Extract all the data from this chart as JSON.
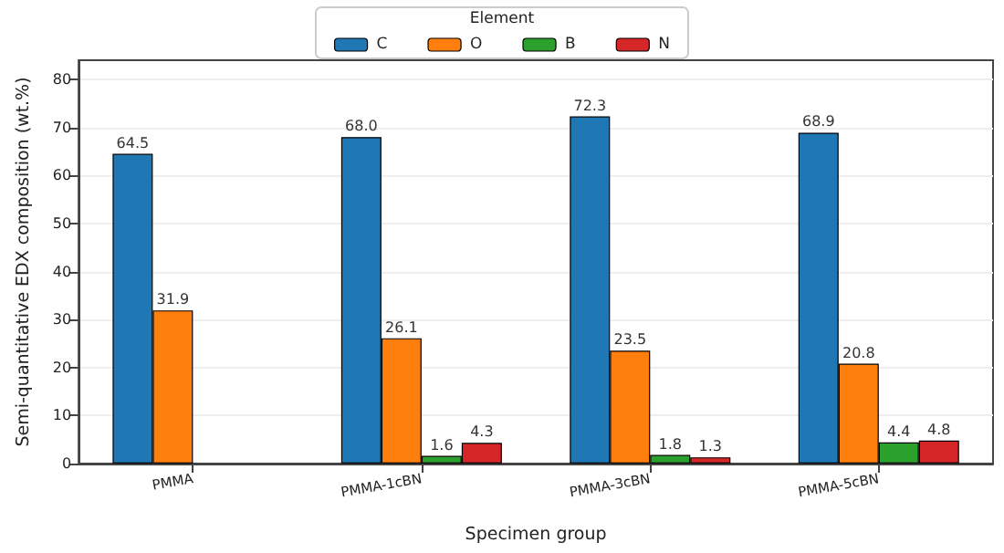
{
  "chart_data": {
    "type": "bar",
    "xlabel": "Specimen group",
    "ylabel": "Semi-quantitative EDX composition (wt.%)",
    "legend_title": "Element",
    "categories": [
      "PMMA",
      "PMMA-1cBN",
      "PMMA-3cBN",
      "PMMA-5cBN"
    ],
    "series": [
      {
        "name": "C",
        "color": "#1f77b4",
        "values": [
          64.5,
          68.0,
          72.3,
          68.9
        ],
        "value_labels": [
          "64.5",
          "68.0",
          "72.3",
          "68.9"
        ]
      },
      {
        "name": "O",
        "color": "#ff7f0e",
        "values": [
          31.9,
          26.1,
          23.5,
          20.8
        ],
        "value_labels": [
          "31.9",
          "26.1",
          "23.5",
          "20.8"
        ]
      },
      {
        "name": "B",
        "color": "#2ca02c",
        "values": [
          null,
          1.6,
          1.8,
          4.4
        ],
        "value_labels": [
          null,
          "1.6",
          "1.8",
          "4.4"
        ]
      },
      {
        "name": "N",
        "color": "#d62728",
        "values": [
          null,
          4.3,
          1.3,
          4.8
        ],
        "value_labels": [
          null,
          "4.3",
          "1.3",
          "4.8"
        ]
      }
    ],
    "ylim": [
      0,
      84
    ],
    "yticks": [
      0,
      10,
      20,
      30,
      40,
      50,
      60,
      70,
      80
    ],
    "grid": "y",
    "legend": "top"
  }
}
